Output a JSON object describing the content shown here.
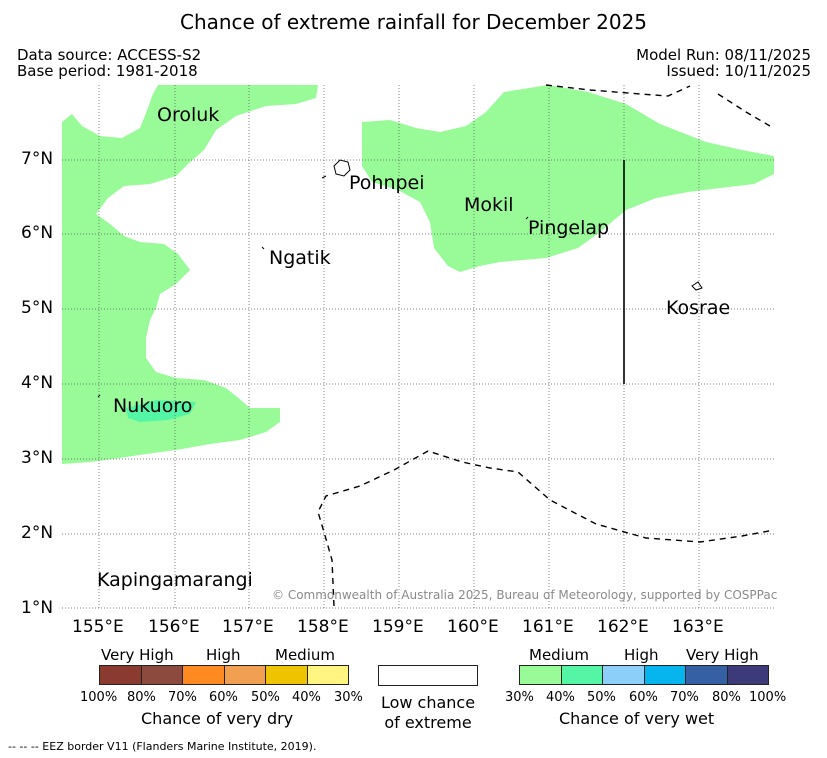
{
  "title": "Chance of extreme rainfall for December 2025",
  "meta": {
    "data_source": "Data source: ACCESS-S2",
    "base_period": "Base period: 1981-2018",
    "model_run": "Model Run: 08/11/2025",
    "issued": "Issued: 10/11/2025"
  },
  "axes": {
    "lat_labels": [
      "7°N",
      "6°N",
      "5°N",
      "4°N",
      "3°N",
      "2°N",
      "1°N"
    ],
    "lon_labels": [
      "155°E",
      "156°E",
      "157°E",
      "158°E",
      "159°E",
      "160°E",
      "161°E",
      "162°E",
      "163°E"
    ]
  },
  "places": {
    "oroluk": "Oroluk",
    "pohnpei": "Pohnpei",
    "mokil": "Mokil",
    "pingelap": "Pingelap",
    "ngatik": "Ngatik",
    "kosrae": "Kosrae",
    "nukuoro": "Nukuoro",
    "kapingamarangi": "Kapingamarangi"
  },
  "credit": "© Commonwealth of Australia 2025, Bureau of Meteorology, supported by COSPPac",
  "legend": {
    "dry": {
      "headings": [
        "Very High",
        "High",
        "Medium"
      ],
      "colors": [
        "#8b3a2f",
        "#8b4a3d",
        "#ff8a22",
        "#f0a050",
        "#eec400",
        "#fff580"
      ],
      "percents": [
        "100%",
        "80%",
        "70%",
        "60%",
        "50%",
        "40%",
        "30%"
      ],
      "caption": "Chance of very dry"
    },
    "neutral": {
      "caption_line1": "Low chance",
      "caption_line2": "of extreme"
    },
    "wet": {
      "headings": [
        "Medium",
        "High",
        "Very High"
      ],
      "colors": [
        "#98fb98",
        "#54f5a4",
        "#8ccff8",
        "#06b4ee",
        "#3660a4",
        "#3c3a78"
      ],
      "percents": [
        "30%",
        "40%",
        "50%",
        "60%",
        "70%",
        "80%",
        "100%"
      ],
      "caption": "Chance of very wet"
    }
  },
  "eez_note": "--  --  -- EEZ border V11 (Flanders Marine Institute, 2019).",
  "colors": {
    "wet_medium": "#98fb98",
    "wet_medium_high": "#54f5a4",
    "grid": "#555555"
  }
}
